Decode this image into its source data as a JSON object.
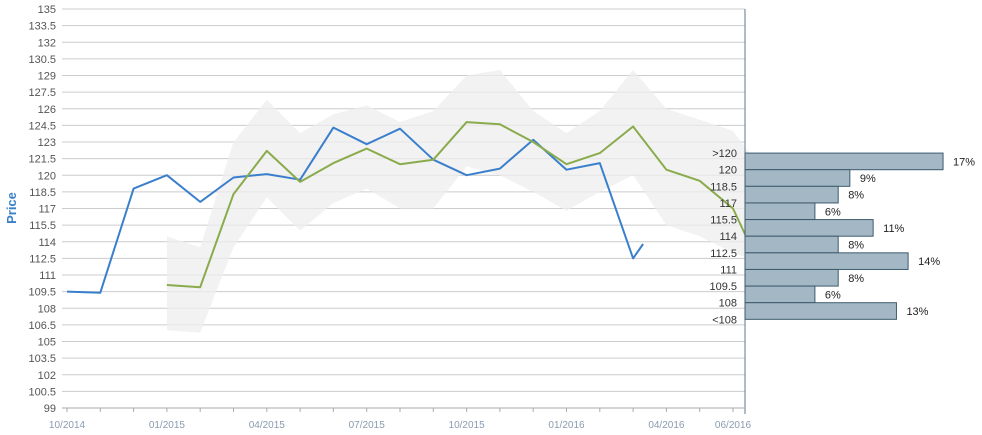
{
  "chart_data": {
    "type": "line",
    "ylabel": "Price",
    "ylim": [
      99,
      135
    ],
    "y_ticks": [
      "99",
      "100.5",
      "102",
      "103.5",
      "105",
      "106.5",
      "108",
      "109.5",
      "111",
      "112.5",
      "114",
      "115.5",
      "117",
      "118.5",
      "120",
      "121.5",
      "123",
      "124.5",
      "126",
      "127.5",
      "129",
      "130.5",
      "132",
      "133.5",
      "135"
    ],
    "x_ticks": [
      "10/2014",
      "01/2015",
      "04/2015",
      "07/2015",
      "10/2015",
      "01/2016",
      "04/2016",
      "06/2016"
    ],
    "x_tick_months": [
      0,
      3,
      6,
      9,
      12,
      15,
      18,
      20
    ],
    "grid": true,
    "colors": {
      "blue": "#3a7fcc",
      "green": "#8aab4c",
      "band": "#eeeeee",
      "bar_fill": "#a3b8c4",
      "bar_stroke": "#3d5a6e",
      "axis": "#5b7a96"
    },
    "series": [
      {
        "color": "#3a7fcc",
        "x": [
          0,
          1,
          2,
          3,
          4,
          5,
          6,
          7,
          8,
          9,
          10,
          11,
          12,
          13,
          14,
          15,
          16,
          17,
          17.3
        ],
        "y": [
          109.5,
          109.4,
          118.8,
          120,
          117.6,
          119.8,
          120.1,
          119.6,
          124.3,
          122.8,
          124.2,
          121.4,
          120,
          120.6,
          123.2,
          120.5,
          121.1,
          112.5,
          113.8
        ]
      },
      {
        "color": "#8aab4c",
        "x": [
          3,
          4,
          5,
          6,
          7,
          8,
          9,
          10,
          11,
          12,
          13,
          14,
          15,
          16,
          17,
          18,
          19,
          20,
          20.5
        ],
        "y": [
          110.1,
          109.9,
          118.3,
          122.2,
          119.4,
          121.1,
          122.4,
          121.0,
          121.4,
          124.8,
          124.6,
          123.0,
          121.0,
          122.0,
          124.4,
          120.5,
          119.5,
          117.0,
          113.8
        ]
      }
    ],
    "band": {
      "x": [
        3,
        4,
        5,
        6,
        7,
        8,
        9,
        10,
        11,
        12,
        13,
        14,
        15,
        16,
        17,
        18,
        19,
        20,
        20.5
      ],
      "upper": [
        114.5,
        113.5,
        123.0,
        126.8,
        123.8,
        125.5,
        126.3,
        124.8,
        125.8,
        129.0,
        129.5,
        125.8,
        123.8,
        125.8,
        129.5,
        126.0,
        125.0,
        124.0,
        122.0
      ],
      "lower": [
        106.0,
        105.8,
        113.5,
        118.0,
        115.0,
        117.5,
        118.8,
        117.0,
        117.0,
        120.8,
        120.0,
        118.5,
        116.8,
        118.5,
        120.0,
        115.5,
        114.5,
        113.0,
        112.5
      ]
    },
    "distribution": {
      "bins": [
        {
          "label": ">120",
          "percent": 17,
          "pct_label": "17%",
          "top": 122,
          "bottom": 120.5
        },
        {
          "label": "120",
          "percent": 9,
          "pct_label": "9%",
          "top": 120.5,
          "bottom": 119
        },
        {
          "label": "118.5",
          "percent": 8,
          "pct_label": "8%",
          "top": 119,
          "bottom": 117.5
        },
        {
          "label": "117",
          "percent": 6,
          "pct_label": "6%",
          "top": 117.5,
          "bottom": 116
        },
        {
          "label": "115.5",
          "percent": 11,
          "pct_label": "11%",
          "top": 116,
          "bottom": 114.5
        },
        {
          "label": "114",
          "percent": 8,
          "pct_label": "8%",
          "top": 114.5,
          "bottom": 113
        },
        {
          "label": "112.5",
          "percent": 14,
          "pct_label": "14%",
          "top": 113,
          "bottom": 111.5
        },
        {
          "label": "111",
          "percent": 8,
          "pct_label": "8%",
          "top": 111.5,
          "bottom": 110
        },
        {
          "label": "109.5",
          "percent": 6,
          "pct_label": "6%",
          "top": 110,
          "bottom": 108.5
        },
        {
          "label": "108",
          "percent": 13,
          "pct_label": "13%",
          "top": 108.5,
          "bottom": 107
        },
        {
          "label": "<108",
          "percent": null,
          "pct_label": "",
          "top": 107,
          "bottom": 107
        }
      ]
    }
  }
}
